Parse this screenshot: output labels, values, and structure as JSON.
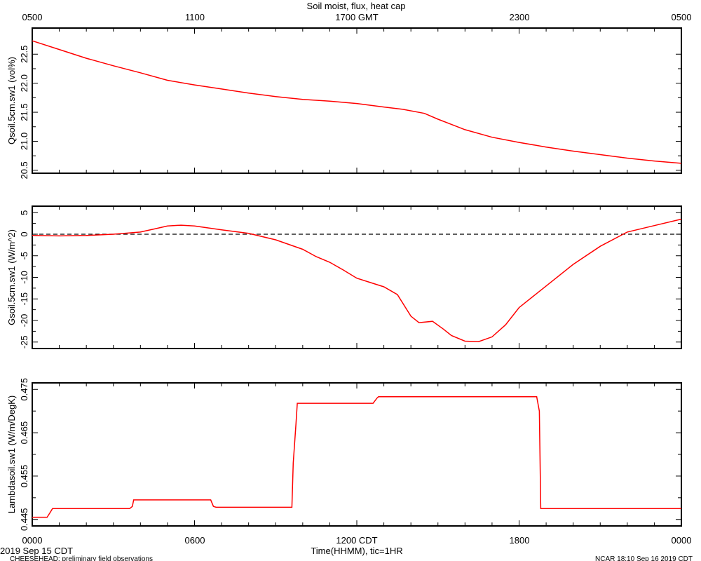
{
  "title": "Soil moist, flux, heat cap",
  "top_axis": {
    "labels": [
      "0500",
      "1100",
      "1700 GMT",
      "2300",
      "0500"
    ]
  },
  "bottom_axis": {
    "labels": [
      "0000",
      "0600",
      "1200 CDT",
      "1800",
      "0000"
    ],
    "xlabel": "Time(HHMM), tic=1HR"
  },
  "footer": {
    "date": "2019 Sep 15 CDT",
    "left": "CHEESEHEAD: preliminary field observations",
    "right": "NCAR 18:10 Sep 16 2019 CDT"
  },
  "colors": {
    "series": "#ff0000",
    "axis": "#000000"
  },
  "chart_data": [
    {
      "type": "line",
      "ylabel": "Qsoil.5cm.sw1 (vol%)",
      "ylim": [
        20.45,
        22.95
      ],
      "yticks": [
        20.5,
        21.0,
        21.5,
        22.0,
        22.5
      ],
      "yticklabels": [
        "20.5",
        "21.0",
        "21.5",
        "22.0",
        "22.5"
      ],
      "xlim": [
        0,
        24
      ],
      "series": [
        {
          "x": [
            0,
            1,
            2,
            3,
            4,
            5,
            6,
            7,
            8,
            9,
            10,
            11,
            12,
            13,
            13.7,
            14.5,
            15,
            16,
            17,
            18,
            19,
            20,
            21,
            22,
            23,
            24
          ],
          "y": [
            22.73,
            22.58,
            22.43,
            22.3,
            22.18,
            22.05,
            21.97,
            21.9,
            21.83,
            21.77,
            21.72,
            21.69,
            21.65,
            21.59,
            21.55,
            21.48,
            21.38,
            21.2,
            21.07,
            20.98,
            20.9,
            20.83,
            20.77,
            20.71,
            20.66,
            20.62
          ]
        }
      ]
    },
    {
      "type": "line",
      "ylabel": "Gsoil.5cm.sw1 (W/m^2)",
      "ylim": [
        -26.5,
        6.5
      ],
      "yticks": [
        -25,
        -20,
        -15,
        -10,
        -5,
        0,
        5
      ],
      "yticklabels": [
        "-25",
        "-20",
        "-15",
        "-10",
        "-5",
        "0",
        "5"
      ],
      "xlim": [
        0,
        24
      ],
      "series": [
        {
          "x": [
            0,
            1,
            2,
            3,
            4,
            4.5,
            5,
            5.5,
            6,
            7,
            8,
            9,
            10,
            10.5,
            11,
            11.5,
            12,
            12.5,
            13,
            13.5,
            14,
            14.3,
            14.8,
            15.2,
            15.5,
            16,
            16.5,
            17,
            17.5,
            18,
            19,
            20,
            21,
            22,
            23,
            24
          ],
          "y": [
            -0.3,
            -0.4,
            -0.3,
            0.0,
            0.5,
            1.2,
            1.9,
            2.1,
            1.9,
            1.0,
            0.2,
            -1.3,
            -3.5,
            -5.2,
            -6.5,
            -8.3,
            -10.2,
            -11.2,
            -12.2,
            -14.0,
            -19.0,
            -20.5,
            -20.2,
            -22.0,
            -23.5,
            -24.8,
            -24.9,
            -23.8,
            -21.0,
            -17.0,
            -12.0,
            -7.0,
            -2.8,
            0.5,
            2.0,
            3.5
          ]
        }
      ]
    },
    {
      "type": "line",
      "ylabel": "Lambdasoil.sw1 (W/m/DegK)",
      "ylim": [
        0.4435,
        0.4765
      ],
      "yticks": [
        0.445,
        0.455,
        0.465,
        0.475
      ],
      "yticklabels": [
        "0.445",
        "0.455",
        "0.465",
        "0.475"
      ],
      "xlim": [
        0,
        24
      ],
      "series": [
        {
          "x": [
            0,
            0.55,
            0.65,
            0.75,
            3.6,
            3.7,
            3.75,
            6.6,
            6.7,
            6.8,
            9.6,
            9.65,
            9.75,
            9.8,
            12.6,
            12.75,
            12.8,
            18.65,
            18.75,
            18.8,
            24
          ],
          "y": [
            0.4455,
            0.4455,
            0.4465,
            0.4475,
            0.4475,
            0.448,
            0.4495,
            0.4495,
            0.448,
            0.4478,
            0.4478,
            0.458,
            0.467,
            0.4718,
            0.4718,
            0.473,
            0.4733,
            0.4733,
            0.47,
            0.4475,
            0.4475
          ]
        }
      ]
    }
  ]
}
